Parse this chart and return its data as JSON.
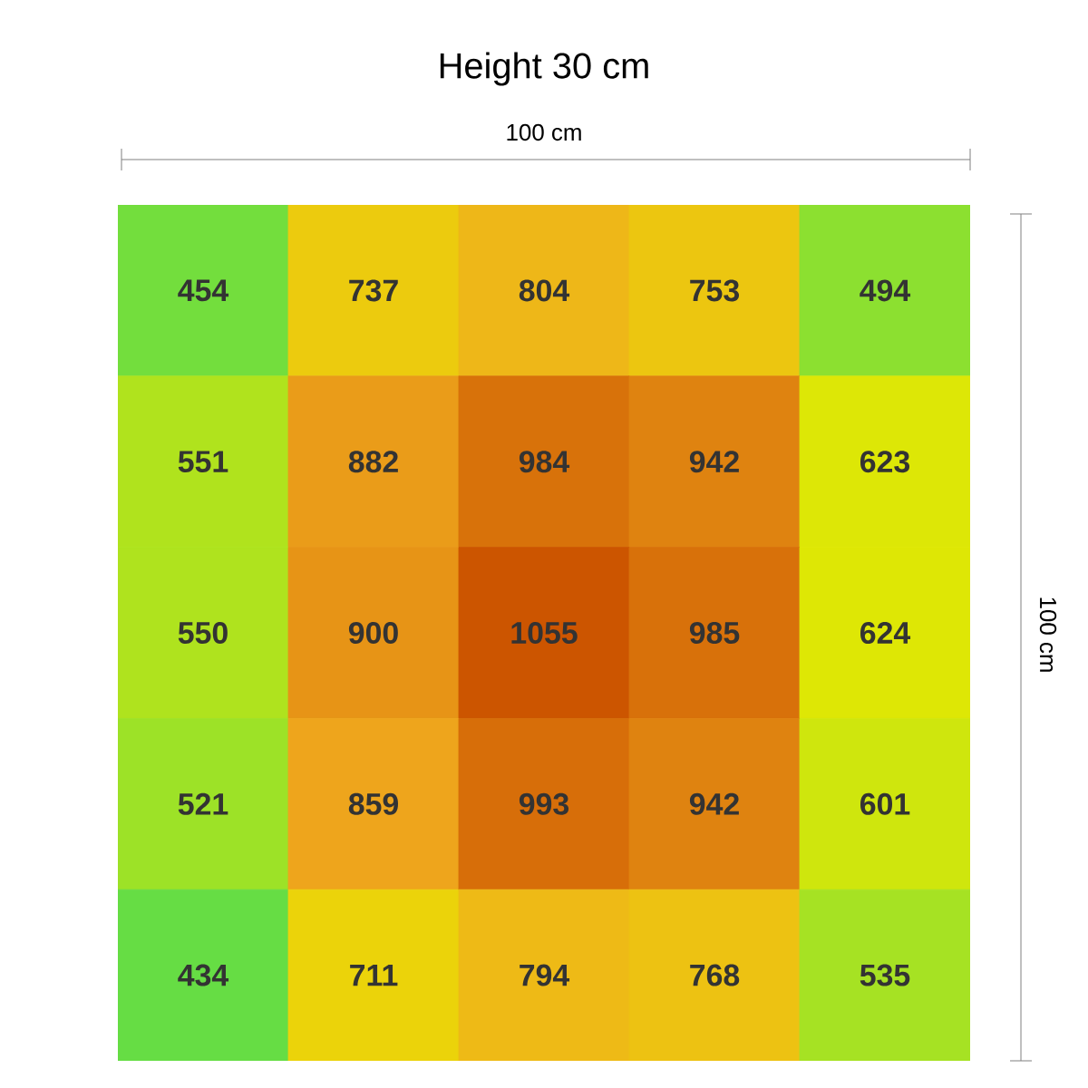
{
  "chart_data": {
    "type": "heatmap",
    "title": "Height 30 cm",
    "xlabel": "100 cm",
    "ylabel": "100 cm",
    "categories": [
      null,
      null,
      null,
      null,
      null
    ],
    "y_categories": [
      null,
      null,
      null,
      null,
      null
    ],
    "cells": [
      [
        454,
        737,
        804,
        753,
        494
      ],
      [
        551,
        882,
        984,
        942,
        623
      ],
      [
        550,
        900,
        1055,
        985,
        624
      ],
      [
        521,
        859,
        993,
        942,
        601
      ],
      [
        434,
        711,
        794,
        768,
        535
      ]
    ],
    "data_labels": true
  }
}
